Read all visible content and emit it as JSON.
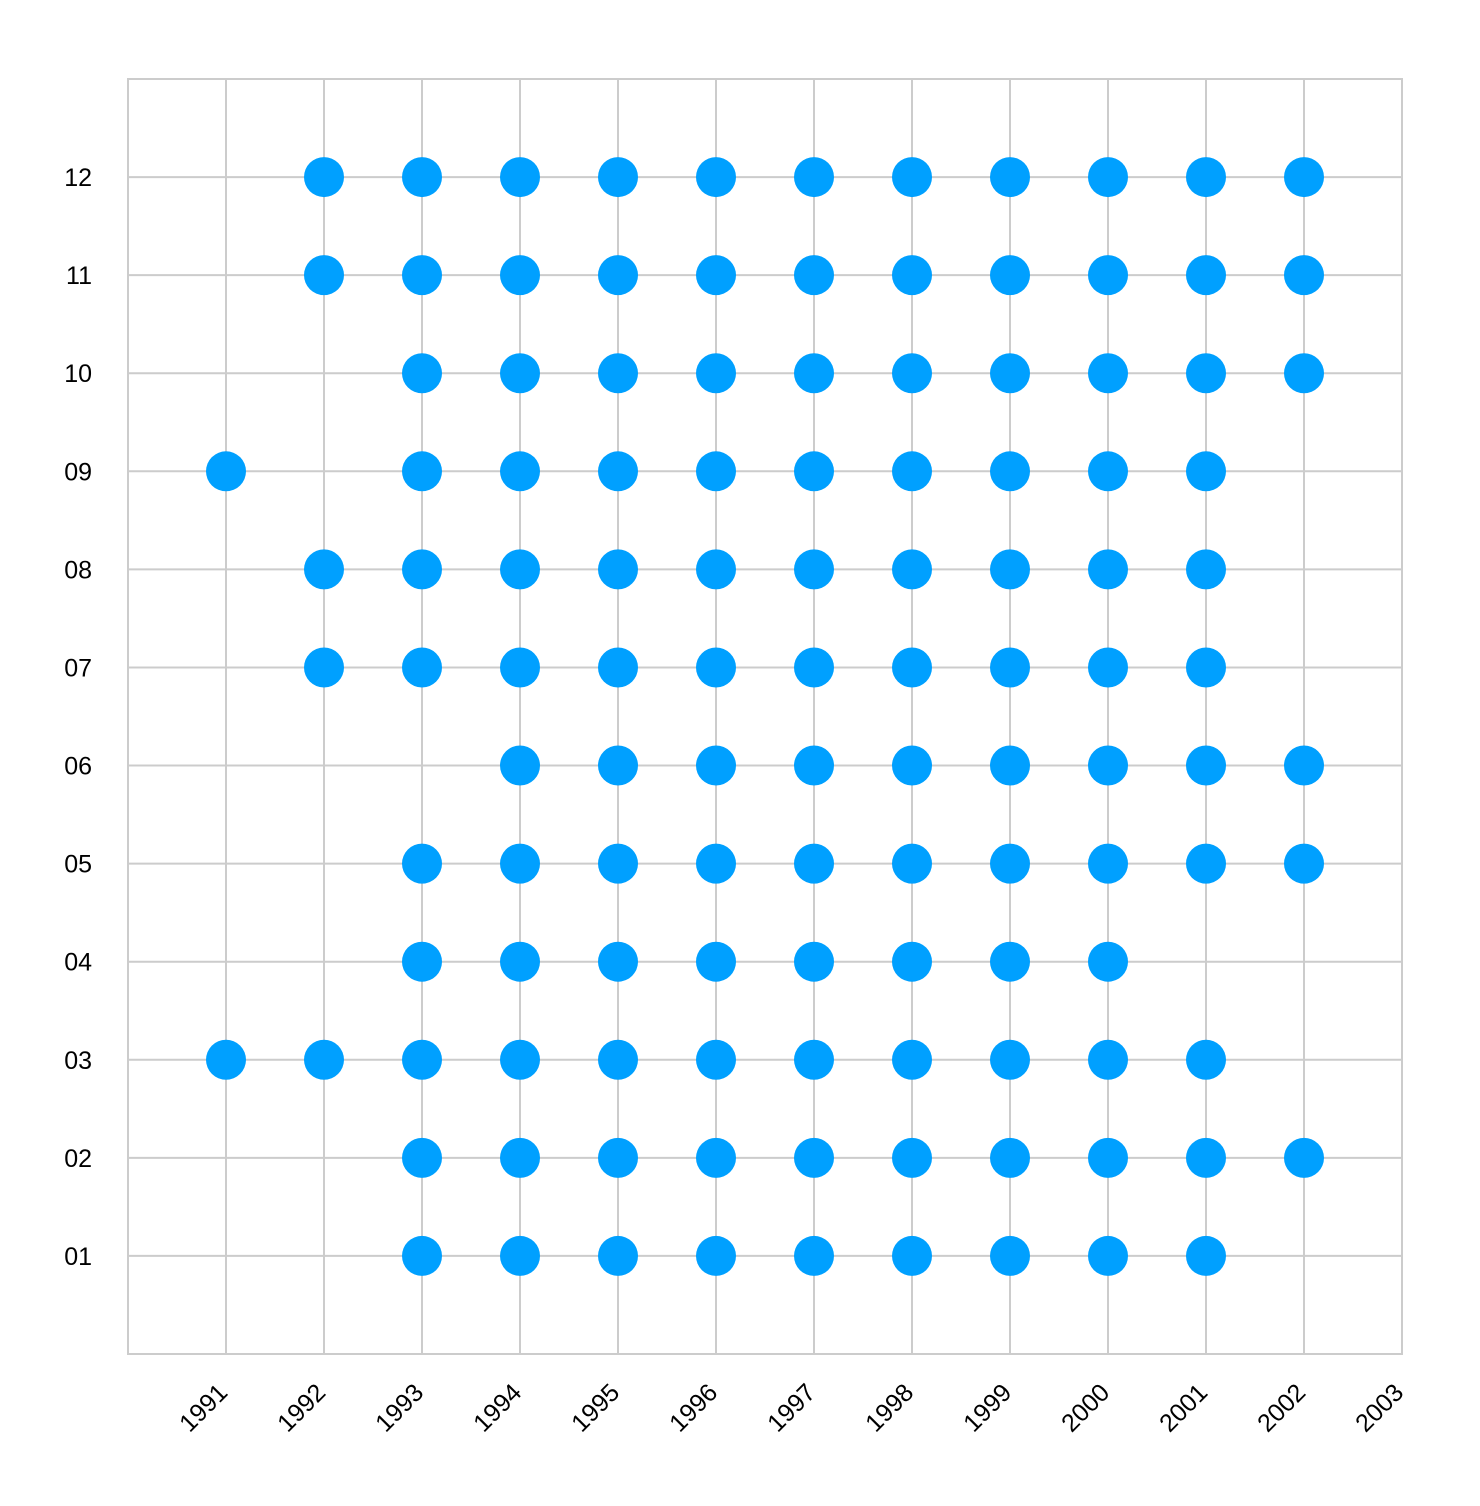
{
  "chart_data": {
    "type": "scatter",
    "title": "",
    "xlabel": "",
    "ylabel": "",
    "x_ticks": [
      "1991",
      "1992",
      "1993",
      "1994",
      "1995",
      "1996",
      "1997",
      "1998",
      "1999",
      "2000",
      "2001",
      "2002",
      "2003"
    ],
    "y_ticks": [
      "01",
      "02",
      "03",
      "04",
      "05",
      "06",
      "07",
      "08",
      "09",
      "10",
      "11",
      "12"
    ],
    "xlim": [
      1990,
      2003
    ],
    "ylim": [
      0,
      13
    ],
    "grid": true,
    "marker_color": "#00a0ff",
    "grid_color": "#cccccc",
    "series": [
      {
        "points": [
          {
            "x": 1992,
            "y": 12
          },
          {
            "x": 1993,
            "y": 12
          },
          {
            "x": 1994,
            "y": 12
          },
          {
            "x": 1995,
            "y": 12
          },
          {
            "x": 1996,
            "y": 12
          },
          {
            "x": 1997,
            "y": 12
          },
          {
            "x": 1998,
            "y": 12
          },
          {
            "x": 1999,
            "y": 12
          },
          {
            "x": 2000,
            "y": 12
          },
          {
            "x": 2001,
            "y": 12
          },
          {
            "x": 2002,
            "y": 12
          },
          {
            "x": 1992,
            "y": 11
          },
          {
            "x": 1993,
            "y": 11
          },
          {
            "x": 1994,
            "y": 11
          },
          {
            "x": 1995,
            "y": 11
          },
          {
            "x": 1996,
            "y": 11
          },
          {
            "x": 1997,
            "y": 11
          },
          {
            "x": 1998,
            "y": 11
          },
          {
            "x": 1999,
            "y": 11
          },
          {
            "x": 2000,
            "y": 11
          },
          {
            "x": 2001,
            "y": 11
          },
          {
            "x": 2002,
            "y": 11
          },
          {
            "x": 1993,
            "y": 10
          },
          {
            "x": 1994,
            "y": 10
          },
          {
            "x": 1995,
            "y": 10
          },
          {
            "x": 1996,
            "y": 10
          },
          {
            "x": 1997,
            "y": 10
          },
          {
            "x": 1998,
            "y": 10
          },
          {
            "x": 1999,
            "y": 10
          },
          {
            "x": 2000,
            "y": 10
          },
          {
            "x": 2001,
            "y": 10
          },
          {
            "x": 2002,
            "y": 10
          },
          {
            "x": 1991,
            "y": 9
          },
          {
            "x": 1993,
            "y": 9
          },
          {
            "x": 1994,
            "y": 9
          },
          {
            "x": 1995,
            "y": 9
          },
          {
            "x": 1996,
            "y": 9
          },
          {
            "x": 1997,
            "y": 9
          },
          {
            "x": 1998,
            "y": 9
          },
          {
            "x": 1999,
            "y": 9
          },
          {
            "x": 2000,
            "y": 9
          },
          {
            "x": 2001,
            "y": 9
          },
          {
            "x": 1992,
            "y": 8
          },
          {
            "x": 1993,
            "y": 8
          },
          {
            "x": 1994,
            "y": 8
          },
          {
            "x": 1995,
            "y": 8
          },
          {
            "x": 1996,
            "y": 8
          },
          {
            "x": 1997,
            "y": 8
          },
          {
            "x": 1998,
            "y": 8
          },
          {
            "x": 1999,
            "y": 8
          },
          {
            "x": 2000,
            "y": 8
          },
          {
            "x": 2001,
            "y": 8
          },
          {
            "x": 1992,
            "y": 7
          },
          {
            "x": 1993,
            "y": 7
          },
          {
            "x": 1994,
            "y": 7
          },
          {
            "x": 1995,
            "y": 7
          },
          {
            "x": 1996,
            "y": 7
          },
          {
            "x": 1997,
            "y": 7
          },
          {
            "x": 1998,
            "y": 7
          },
          {
            "x": 1999,
            "y": 7
          },
          {
            "x": 2000,
            "y": 7
          },
          {
            "x": 2001,
            "y": 7
          },
          {
            "x": 1994,
            "y": 6
          },
          {
            "x": 1995,
            "y": 6
          },
          {
            "x": 1996,
            "y": 6
          },
          {
            "x": 1997,
            "y": 6
          },
          {
            "x": 1998,
            "y": 6
          },
          {
            "x": 1999,
            "y": 6
          },
          {
            "x": 2000,
            "y": 6
          },
          {
            "x": 2001,
            "y": 6
          },
          {
            "x": 2002,
            "y": 6
          },
          {
            "x": 1993,
            "y": 5
          },
          {
            "x": 1994,
            "y": 5
          },
          {
            "x": 1995,
            "y": 5
          },
          {
            "x": 1996,
            "y": 5
          },
          {
            "x": 1997,
            "y": 5
          },
          {
            "x": 1998,
            "y": 5
          },
          {
            "x": 1999,
            "y": 5
          },
          {
            "x": 2000,
            "y": 5
          },
          {
            "x": 2001,
            "y": 5
          },
          {
            "x": 2002,
            "y": 5
          },
          {
            "x": 1993,
            "y": 4
          },
          {
            "x": 1994,
            "y": 4
          },
          {
            "x": 1995,
            "y": 4
          },
          {
            "x": 1996,
            "y": 4
          },
          {
            "x": 1997,
            "y": 4
          },
          {
            "x": 1998,
            "y": 4
          },
          {
            "x": 1999,
            "y": 4
          },
          {
            "x": 2000,
            "y": 4
          },
          {
            "x": 1991,
            "y": 3
          },
          {
            "x": 1992,
            "y": 3
          },
          {
            "x": 1993,
            "y": 3
          },
          {
            "x": 1994,
            "y": 3
          },
          {
            "x": 1995,
            "y": 3
          },
          {
            "x": 1996,
            "y": 3
          },
          {
            "x": 1997,
            "y": 3
          },
          {
            "x": 1998,
            "y": 3
          },
          {
            "x": 1999,
            "y": 3
          },
          {
            "x": 2000,
            "y": 3
          },
          {
            "x": 2001,
            "y": 3
          },
          {
            "x": 1993,
            "y": 2
          },
          {
            "x": 1994,
            "y": 2
          },
          {
            "x": 1995,
            "y": 2
          },
          {
            "x": 1996,
            "y": 2
          },
          {
            "x": 1997,
            "y": 2
          },
          {
            "x": 1998,
            "y": 2
          },
          {
            "x": 1999,
            "y": 2
          },
          {
            "x": 2000,
            "y": 2
          },
          {
            "x": 2001,
            "y": 2
          },
          {
            "x": 2002,
            "y": 2
          },
          {
            "x": 1993,
            "y": 1
          },
          {
            "x": 1994,
            "y": 1
          },
          {
            "x": 1995,
            "y": 1
          },
          {
            "x": 1996,
            "y": 1
          },
          {
            "x": 1997,
            "y": 1
          },
          {
            "x": 1998,
            "y": 1
          },
          {
            "x": 1999,
            "y": 1
          },
          {
            "x": 2000,
            "y": 1
          },
          {
            "x": 2001,
            "y": 1
          }
        ]
      }
    ]
  }
}
